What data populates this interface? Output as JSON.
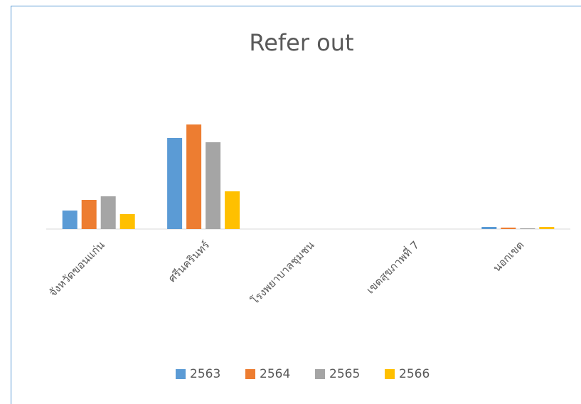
{
  "chart_data": {
    "type": "bar",
    "title": "Refer out",
    "categories": [
      "จังหวัดขอนแก่น",
      "ศรีนครินทร์",
      "โรงพยาบาลชุมชน",
      "เขตสุขภาพที่ 7",
      "นอกเขต"
    ],
    "series": [
      {
        "name": "2563",
        "color": "#5b9bd5",
        "values": [
          26,
          128,
          0,
          0,
          3
        ]
      },
      {
        "name": "2564",
        "color": "#ed7d31",
        "values": [
          41,
          147,
          0,
          0,
          2
        ]
      },
      {
        "name": "2565",
        "color": "#a5a5a5",
        "values": [
          46,
          122,
          0,
          0,
          1
        ]
      },
      {
        "name": "2566",
        "color": "#ffc000",
        "values": [
          21,
          53,
          0,
          0,
          3
        ]
      }
    ],
    "ylim": [
      0,
      160
    ],
    "legend": "bottom"
  }
}
